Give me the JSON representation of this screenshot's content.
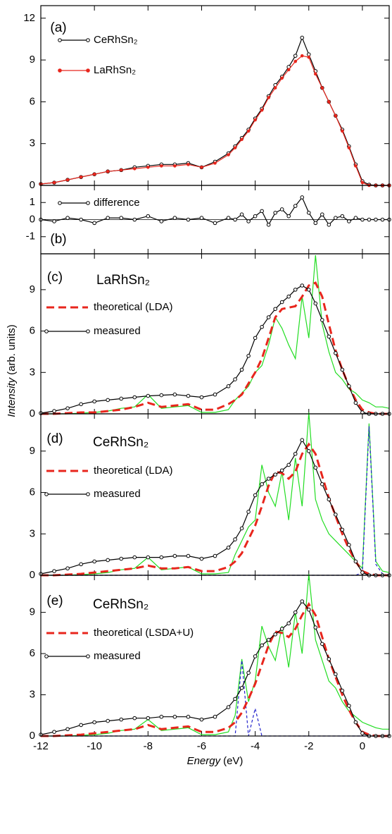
{
  "chart_data": [
    {
      "type": "line",
      "panel_label": "(a)",
      "x": [
        -12,
        -11.5,
        -11,
        -10.5,
        -10,
        -9.5,
        -9,
        -8.5,
        -8,
        -7.5,
        -7,
        -6.5,
        -6,
        -5.5,
        -5,
        -4.75,
        -4.5,
        -4.25,
        -4,
        -3.75,
        -3.5,
        -3.25,
        -3,
        -2.75,
        -2.5,
        -2.25,
        -2,
        -1.75,
        -1.5,
        -1.25,
        -1,
        -0.75,
        -0.5,
        -0.25,
        0,
        0.25,
        0.5,
        0.75,
        1
      ],
      "xlim": [
        -12,
        1
      ],
      "ylim": [
        0,
        12.9
      ],
      "yticks": [
        0,
        3,
        6,
        9,
        12
      ],
      "series": [
        {
          "name": "CeRhSn₂",
          "color": "#000000",
          "marker": "circle",
          "values": [
            0.1,
            0.2,
            0.4,
            0.6,
            0.8,
            1.0,
            1.1,
            1.3,
            1.4,
            1.5,
            1.5,
            1.6,
            1.3,
            1.7,
            2.3,
            2.8,
            3.4,
            4.0,
            4.8,
            5.5,
            6.4,
            7.2,
            7.8,
            8.5,
            9.3,
            10.6,
            9.4,
            8.2,
            7.0,
            6.0,
            5.0,
            4.0,
            2.8,
            1.5,
            0.3,
            0.05,
            0,
            0,
            0
          ]
        },
        {
          "name": "LaRhSn₂",
          "color": "#e8261d",
          "marker": "dot",
          "values": [
            0.1,
            0.2,
            0.4,
            0.6,
            0.8,
            1.0,
            1.1,
            1.2,
            1.3,
            1.4,
            1.4,
            1.5,
            1.3,
            1.6,
            2.2,
            2.7,
            3.3,
            3.9,
            4.7,
            5.4,
            6.3,
            7.0,
            7.7,
            8.3,
            8.9,
            9.3,
            9.2,
            8.0,
            7.0,
            6.0,
            5.0,
            3.9,
            2.7,
            1.4,
            0.2,
            0,
            0,
            0,
            0
          ]
        }
      ]
    },
    {
      "type": "line",
      "panel_label": "(b)",
      "x": [
        -12,
        -11.5,
        -11,
        -10.5,
        -10,
        -9.5,
        -9,
        -8.5,
        -8,
        -7.5,
        -7,
        -6.5,
        -6,
        -5.5,
        -5,
        -4.75,
        -4.5,
        -4.25,
        -4,
        -3.75,
        -3.5,
        -3.25,
        -3,
        -2.75,
        -2.5,
        -2.25,
        -2,
        -1.75,
        -1.5,
        -1.25,
        -1,
        -0.75,
        -0.5,
        -0.25,
        0,
        0.25,
        0.5,
        0.75,
        1
      ],
      "xlim": [
        -12,
        1
      ],
      "ylim": [
        -2,
        2
      ],
      "yticks": [
        1,
        0,
        -1
      ],
      "zero_line": true,
      "series": [
        {
          "name": "difference",
          "color": "#000000",
          "marker": "circle",
          "values": [
            0,
            -0.1,
            0.1,
            0,
            -0.2,
            0.1,
            0.1,
            0,
            0.2,
            -0.1,
            0.1,
            0,
            0.1,
            -0.2,
            0.1,
            0,
            0.3,
            -0.1,
            0.2,
            0.5,
            -0.3,
            0.4,
            0.6,
            0.2,
            0.8,
            1.3,
            0.4,
            -0.2,
            0.3,
            -0.3,
            0.1,
            0.2,
            -0.1,
            0.1,
            0,
            0,
            0,
            0,
            0
          ]
        }
      ]
    },
    {
      "type": "line",
      "panel_label": "(c)",
      "sample": "LaRhSn₂",
      "ylabel_italic": "Intensity",
      "ylabel_rest": "(arb. units)",
      "x": [
        -12,
        -11.5,
        -11,
        -10.5,
        -10,
        -9.5,
        -9,
        -8.5,
        -8,
        -7.5,
        -7,
        -6.5,
        -6,
        -5.5,
        -5,
        -4.75,
        -4.5,
        -4.25,
        -4,
        -3.75,
        -3.5,
        -3.25,
        -3,
        -2.75,
        -2.5,
        -2.25,
        -2,
        -1.75,
        -1.5,
        -1.25,
        -1,
        -0.75,
        -0.5,
        -0.25,
        0,
        0.25,
        0.5,
        0.75,
        1
      ],
      "xlim": [
        -12,
        1
      ],
      "ylim": [
        0,
        11.6
      ],
      "yticks": [
        0,
        3,
        6,
        9
      ],
      "series": [
        {
          "color": "#22dd22",
          "values": [
            0,
            0,
            0,
            0.05,
            0.1,
            0.2,
            0.4,
            0.5,
            1.4,
            0.4,
            0.5,
            0.6,
            0.1,
            0.1,
            0.3,
            1.0,
            1.5,
            2.0,
            3.0,
            3.5,
            5.0,
            7.0,
            6.2,
            5.0,
            4.0,
            8.5,
            5.5,
            11.5,
            6.5,
            4.5,
            3.0,
            2.5,
            1.8,
            1.5,
            1.0,
            0.8,
            0.5,
            0.5,
            0.4
          ]
        },
        {
          "name": "theoretical (LDA)",
          "color": "#e8261d",
          "dash": true,
          "values": [
            0,
            0,
            0.05,
            0.1,
            0.1,
            0.2,
            0.3,
            0.5,
            0.8,
            0.5,
            0.6,
            0.7,
            0.3,
            0.3,
            0.7,
            1.0,
            1.4,
            2.2,
            3.0,
            4.0,
            5.5,
            7.0,
            7.6,
            7.7,
            7.8,
            8.5,
            9.3,
            9.5,
            8.5,
            6.5,
            4.6,
            3.2,
            2.0,
            1.0,
            0.3,
            0.1,
            0,
            0,
            0
          ]
        },
        {
          "name": "measured",
          "color": "#000000",
          "marker": "circle",
          "values": [
            0.05,
            0.2,
            0.4,
            0.7,
            0.9,
            1.0,
            1.1,
            1.2,
            1.3,
            1.35,
            1.4,
            1.3,
            1.2,
            1.4,
            2.0,
            2.5,
            3.2,
            4.2,
            5.5,
            6.3,
            7.0,
            7.6,
            8.1,
            8.5,
            9.0,
            9.3,
            9.0,
            8.0,
            6.8,
            5.6,
            4.4,
            3.2,
            2.0,
            0.8,
            0.1,
            0,
            0,
            0,
            0
          ]
        }
      ]
    },
    {
      "type": "line",
      "panel_label": "(d)",
      "sample": "CeRhSn₂",
      "x": [
        -12,
        -11.5,
        -11,
        -10.5,
        -10,
        -9.5,
        -9,
        -8.5,
        -8,
        -7.5,
        -7,
        -6.5,
        -6,
        -5.5,
        -5,
        -4.75,
        -4.5,
        -4.25,
        -4,
        -3.75,
        -3.5,
        -3.25,
        -3,
        -2.75,
        -2.5,
        -2.25,
        -2,
        -1.75,
        -1.5,
        -1.25,
        -1,
        -0.75,
        -0.5,
        -0.25,
        0,
        0.25,
        0.5,
        0.75,
        1
      ],
      "xlim": [
        -12,
        1
      ],
      "ylim": [
        0,
        11.7
      ],
      "yticks": [
        0,
        3,
        6,
        9
      ],
      "series": [
        {
          "color": "#22dd22",
          "values": [
            0,
            0,
            0,
            0.05,
            0.1,
            0.2,
            0.4,
            0.5,
            1.3,
            0.4,
            0.5,
            0.6,
            0.1,
            0.1,
            0.2,
            1.5,
            2.5,
            3.5,
            4.0,
            8.0,
            6.0,
            5.0,
            7.5,
            4.0,
            8.5,
            5.0,
            11.8,
            5.5,
            4.0,
            3.0,
            2.5,
            2.0,
            1.5,
            1.0,
            0.5,
            11.0,
            1.0,
            0.3,
            0.2
          ]
        },
        {
          "color": "#2222cc",
          "thin_dash": true,
          "values": [
            0,
            0,
            0,
            0,
            0,
            0,
            0,
            0,
            0,
            0,
            0,
            0,
            0,
            0,
            0,
            0,
            0,
            0,
            0,
            0,
            0,
            0,
            0,
            0,
            0,
            0,
            0,
            0,
            0,
            0,
            0,
            0,
            0,
            0,
            0.2,
            10.8,
            0.8,
            0.1,
            0
          ]
        },
        {
          "name": "theoretical (LDA)",
          "color": "#e8261d",
          "dash": true,
          "values": [
            0,
            0,
            0.05,
            0.1,
            0.2,
            0.3,
            0.4,
            0.5,
            0.7,
            0.5,
            0.5,
            0.6,
            0.3,
            0.3,
            0.6,
            1.0,
            1.6,
            2.6,
            3.6,
            5.0,
            6.5,
            7.5,
            7.4,
            7.0,
            7.5,
            8.8,
            9.5,
            8.8,
            7.2,
            5.6,
            4.3,
            3.0,
            1.9,
            1.0,
            0.3,
            0.1,
            0,
            0,
            0
          ]
        },
        {
          "name": "measured",
          "color": "#000000",
          "marker": "circle",
          "values": [
            0.1,
            0.3,
            0.5,
            0.8,
            1.0,
            1.1,
            1.2,
            1.3,
            1.3,
            1.3,
            1.4,
            1.4,
            1.2,
            1.4,
            2.0,
            2.6,
            3.4,
            4.6,
            5.8,
            6.6,
            7.0,
            7.3,
            7.6,
            8.0,
            8.8,
            9.8,
            9.0,
            7.8,
            6.6,
            5.5,
            4.4,
            3.3,
            2.2,
            1.0,
            0.2,
            0,
            0,
            0,
            0
          ]
        }
      ]
    },
    {
      "type": "line",
      "panel_label": "(e)",
      "sample": "CeRhSn₂",
      "xlabel_italic": "Energy",
      "xlabel_rest": "(eV)",
      "x": [
        -12,
        -11.5,
        -11,
        -10.5,
        -10,
        -9.5,
        -9,
        -8.5,
        -8,
        -7.5,
        -7,
        -6.5,
        -6,
        -5.5,
        -5,
        -4.75,
        -4.5,
        -4.25,
        -4,
        -3.75,
        -3.5,
        -3.25,
        -3,
        -2.75,
        -2.5,
        -2.25,
        -2,
        -1.75,
        -1.5,
        -1.25,
        -1,
        -0.75,
        -0.5,
        -0.25,
        0,
        0.25,
        0.5,
        0.75,
        1
      ],
      "xlim": [
        -12,
        1
      ],
      "xticks": [
        -12,
        -10,
        -8,
        -6,
        -4,
        -2,
        0
      ],
      "ylim": [
        0,
        11.7
      ],
      "yticks": [
        0,
        3,
        6,
        9
      ],
      "series": [
        {
          "color": "#22dd22",
          "values": [
            0,
            0,
            0,
            0.05,
            0.1,
            0.2,
            0.4,
            0.5,
            1.2,
            0.4,
            0.5,
            0.6,
            0.1,
            0.1,
            0.3,
            1.5,
            5.6,
            2.5,
            4.0,
            8.0,
            6.5,
            5.5,
            8.0,
            5.0,
            9.0,
            6.0,
            11.8,
            7.0,
            5.5,
            4.0,
            3.5,
            2.5,
            1.8,
            1.4,
            1.0,
            0.8,
            0.6,
            0.5,
            0.5
          ]
        },
        {
          "color": "#2222cc",
          "thin_dash": true,
          "values": [
            0,
            0,
            0,
            0,
            0,
            0,
            0,
            0,
            0,
            0,
            0,
            0,
            0,
            0,
            0,
            0,
            5.5,
            0,
            2.0,
            0,
            0,
            0,
            0,
            0,
            0,
            0,
            0,
            0,
            0,
            0,
            0,
            0,
            0,
            0,
            0,
            0,
            0,
            0,
            0
          ]
        },
        {
          "name": "theoretical (LSDA+U)",
          "color": "#e8261d",
          "dash": true,
          "values": [
            0,
            0,
            0.05,
            0.1,
            0.2,
            0.3,
            0.4,
            0.5,
            0.8,
            0.5,
            0.6,
            0.7,
            0.3,
            0.3,
            0.6,
            1.0,
            1.7,
            2.7,
            3.8,
            5.2,
            6.6,
            7.6,
            7.5,
            7.2,
            7.8,
            8.8,
            9.6,
            8.8,
            7.2,
            5.6,
            4.3,
            3.0,
            1.9,
            1.0,
            0.3,
            0.1,
            0,
            0,
            0
          ]
        },
        {
          "name": "measured",
          "color": "#000000",
          "marker": "circle",
          "values": [
            0.1,
            0.3,
            0.5,
            0.8,
            1.0,
            1.1,
            1.2,
            1.3,
            1.3,
            1.4,
            1.4,
            1.4,
            1.2,
            1.4,
            2.1,
            2.7,
            3.5,
            4.6,
            5.8,
            6.6,
            7.0,
            7.4,
            7.8,
            8.2,
            9.0,
            9.8,
            9.2,
            7.9,
            6.7,
            5.6,
            4.5,
            3.3,
            2.2,
            1.0,
            0.2,
            0,
            0,
            0,
            0
          ]
        }
      ]
    }
  ]
}
